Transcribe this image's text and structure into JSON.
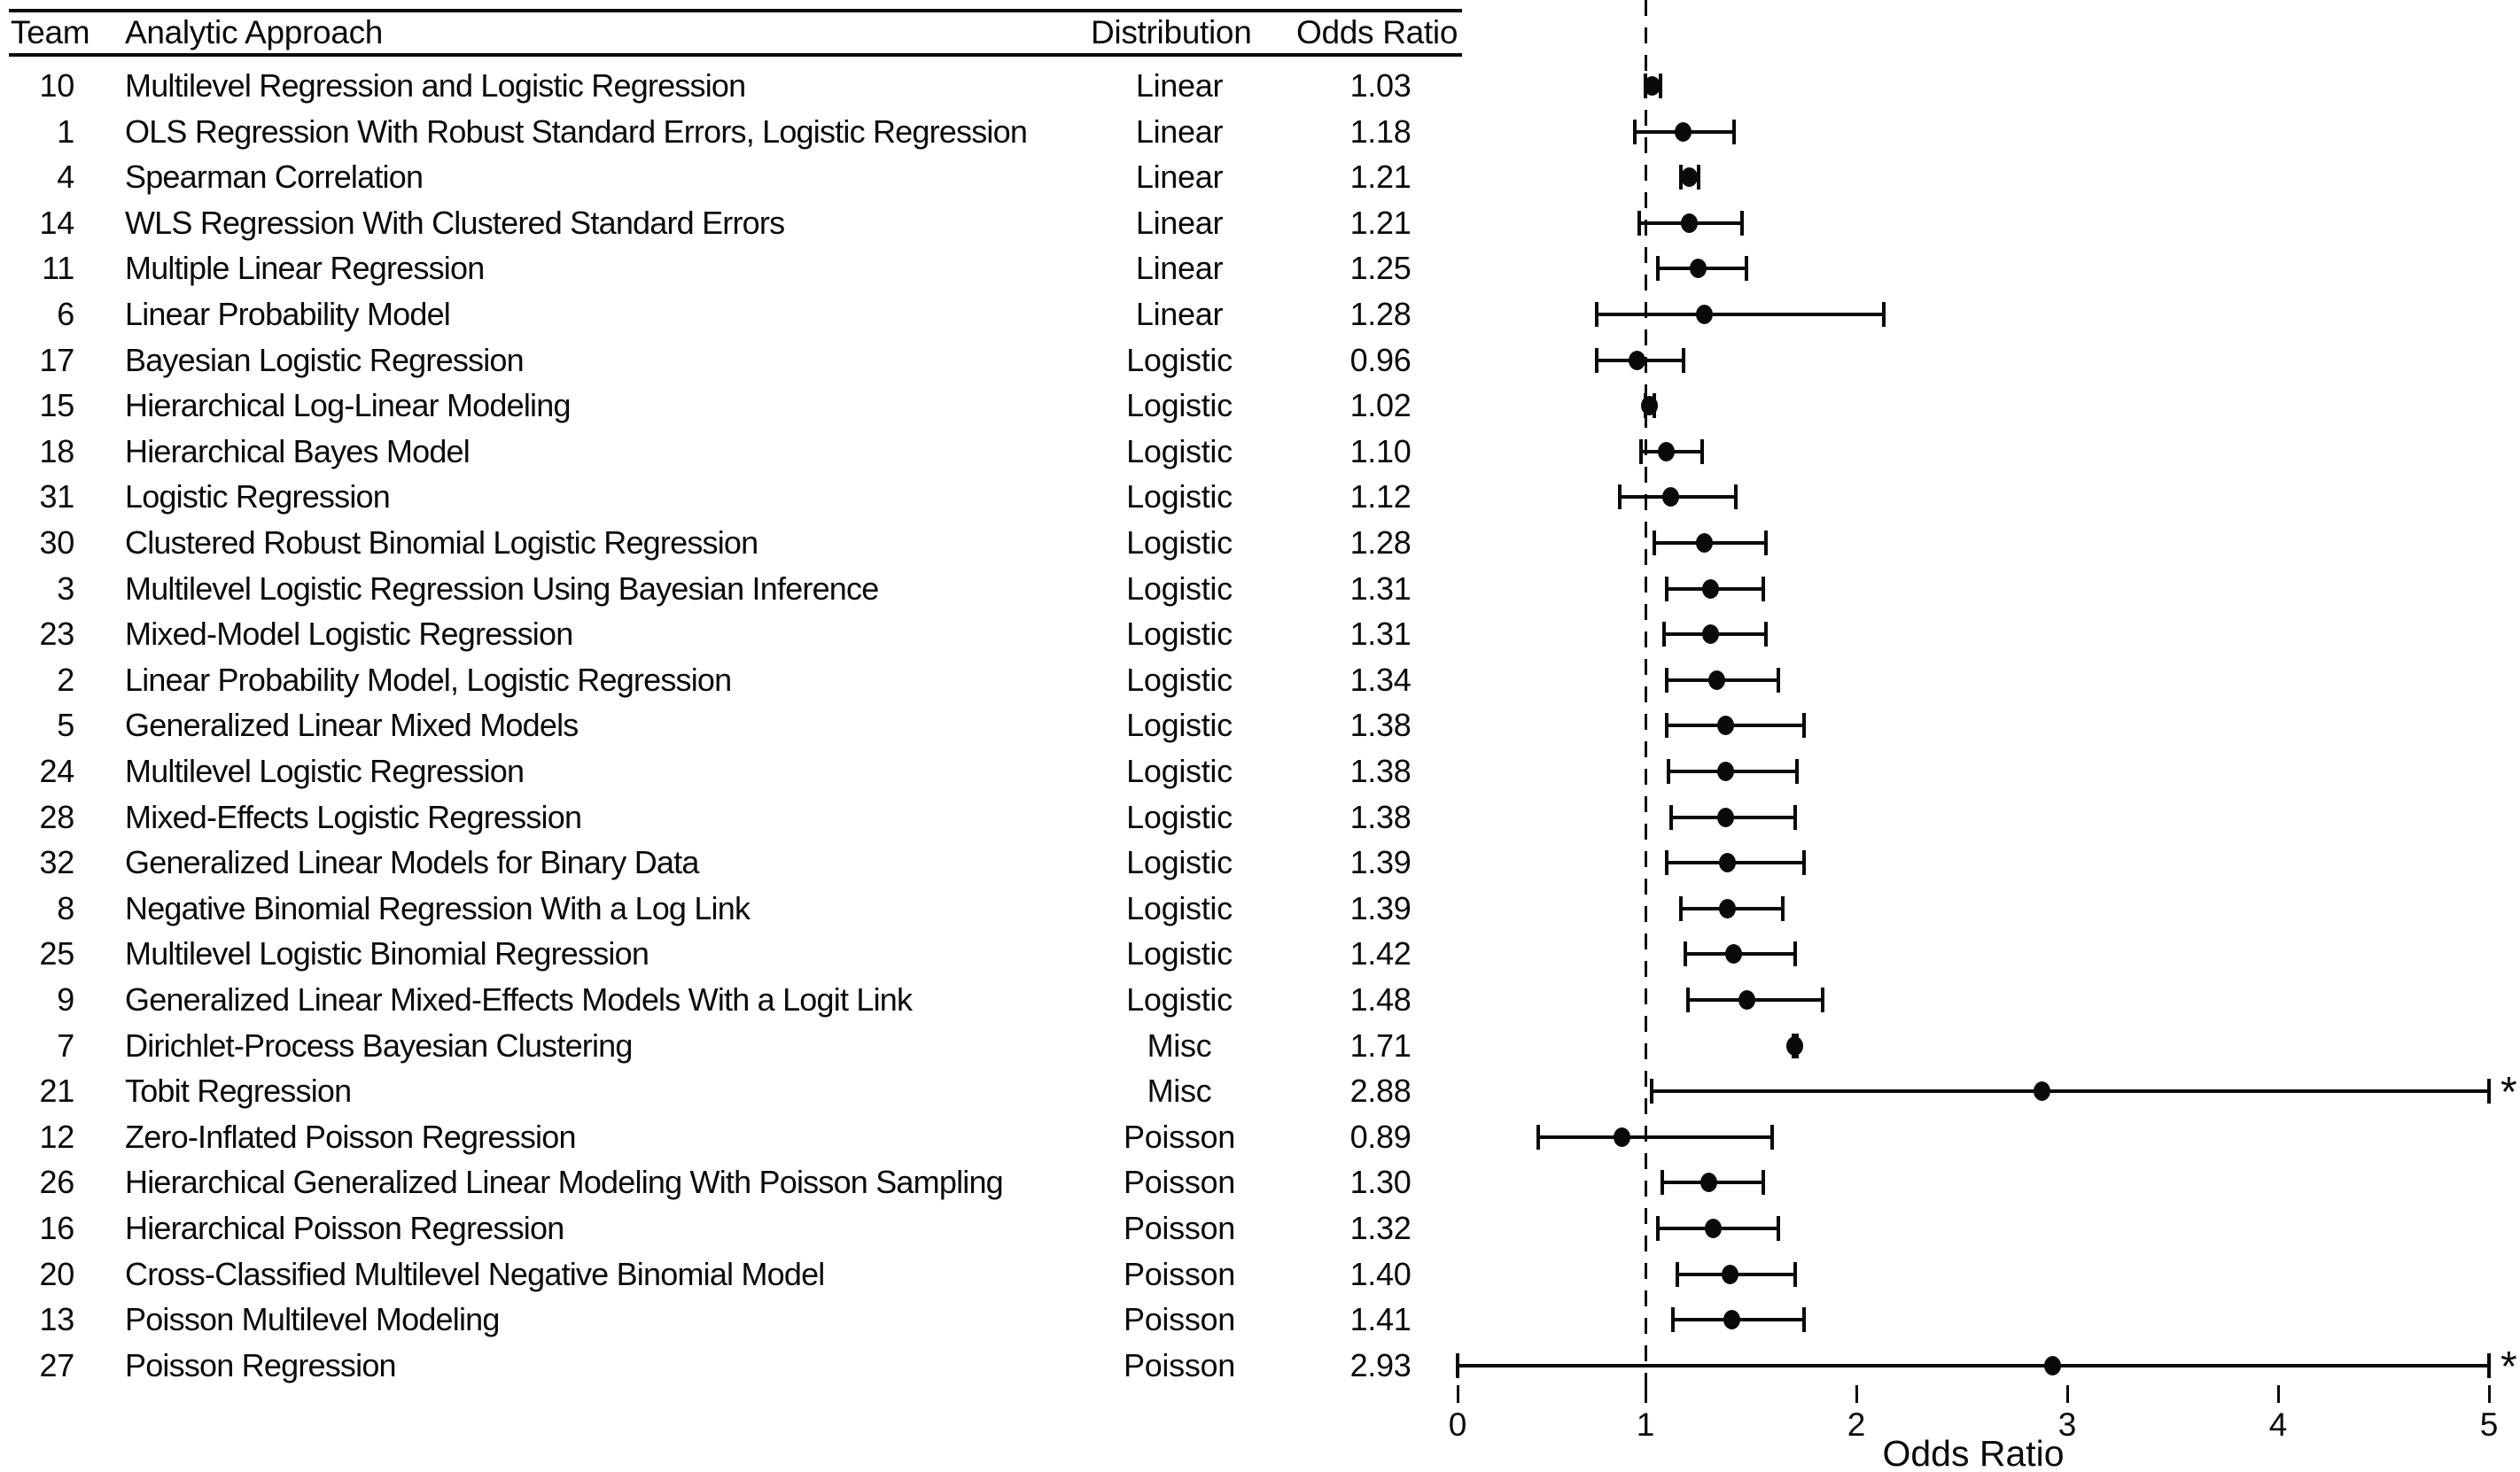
{
  "table": {
    "headers": {
      "team": "Team",
      "approach": "Analytic Approach",
      "distribution": "Distribution",
      "odds_ratio": "Odds Ratio"
    }
  },
  "chart_data": {
    "type": "scatter",
    "subtype": "forest-plot",
    "title": "",
    "xlabel": "Odds Ratio",
    "ylabel": "",
    "xlim": [
      0,
      5
    ],
    "x_ticks": [
      0,
      1,
      2,
      3,
      4,
      5
    ],
    "reference_line_x": 1,
    "truncation_marker": "*",
    "grid": false,
    "points": [
      {
        "team": "10",
        "approach": "Multilevel Regression and Logistic Regression",
        "distribution": "Linear",
        "or_text": "1.03",
        "or": 1.03,
        "ci_low": 1.0,
        "ci_high": 1.07,
        "truncated": false
      },
      {
        "team": "1",
        "approach": "OLS Regression With Robust Standard Errors, Logistic Regression",
        "distribution": "Linear",
        "or_text": "1.18",
        "or": 1.18,
        "ci_low": 0.95,
        "ci_high": 1.42,
        "truncated": false
      },
      {
        "team": "4",
        "approach": "Spearman Correlation",
        "distribution": "Linear",
        "or_text": "1.21",
        "or": 1.21,
        "ci_low": 1.17,
        "ci_high": 1.25,
        "truncated": false
      },
      {
        "team": "14",
        "approach": "WLS Regression With Clustered Standard Errors",
        "distribution": "Linear",
        "or_text": "1.21",
        "or": 1.21,
        "ci_low": 0.97,
        "ci_high": 1.46,
        "truncated": false
      },
      {
        "team": "11",
        "approach": "Multiple Linear Regression",
        "distribution": "Linear",
        "or_text": "1.25",
        "or": 1.25,
        "ci_low": 1.06,
        "ci_high": 1.48,
        "truncated": false
      },
      {
        "team": "6",
        "approach": "Linear Probability Model",
        "distribution": "Linear",
        "or_text": "1.28",
        "or": 1.28,
        "ci_low": 0.77,
        "ci_high": 2.13,
        "truncated": false
      },
      {
        "team": "17",
        "approach": "Bayesian Logistic Regression",
        "distribution": "Logistic",
        "or_text": "0.96",
        "or": 0.96,
        "ci_low": 0.77,
        "ci_high": 1.18,
        "truncated": false
      },
      {
        "team": "15",
        "approach": "Hierarchical Log-Linear Modeling",
        "distribution": "Logistic",
        "or_text": "1.02",
        "or": 1.02,
        "ci_low": 1.0,
        "ci_high": 1.04,
        "truncated": false
      },
      {
        "team": "18",
        "approach": "Hierarchical Bayes Model",
        "distribution": "Logistic",
        "or_text": "1.10",
        "or": 1.1,
        "ci_low": 0.98,
        "ci_high": 1.27,
        "truncated": false
      },
      {
        "team": "31",
        "approach": "Logistic Regression",
        "distribution": "Logistic",
        "or_text": "1.12",
        "or": 1.12,
        "ci_low": 0.88,
        "ci_high": 1.43,
        "truncated": false
      },
      {
        "team": "30",
        "approach": "Clustered Robust Binomial Logistic Regression",
        "distribution": "Logistic",
        "or_text": "1.28",
        "or": 1.28,
        "ci_low": 1.04,
        "ci_high": 1.57,
        "truncated": false
      },
      {
        "team": "3",
        "approach": "Multilevel Logistic Regression Using Bayesian Inference",
        "distribution": "Logistic",
        "or_text": "1.31",
        "or": 1.31,
        "ci_low": 1.1,
        "ci_high": 1.56,
        "truncated": false
      },
      {
        "team": "23",
        "approach": "Mixed-Model Logistic Regression",
        "distribution": "Logistic",
        "or_text": "1.31",
        "or": 1.31,
        "ci_low": 1.09,
        "ci_high": 1.57,
        "truncated": false
      },
      {
        "team": "2",
        "approach": "Linear Probability Model, Logistic Regression",
        "distribution": "Logistic",
        "or_text": "1.34",
        "or": 1.34,
        "ci_low": 1.1,
        "ci_high": 1.63,
        "truncated": false
      },
      {
        "team": "5",
        "approach": "Generalized Linear Mixed Models",
        "distribution": "Logistic",
        "or_text": "1.38",
        "or": 1.38,
        "ci_low": 1.1,
        "ci_high": 1.75,
        "truncated": false
      },
      {
        "team": "24",
        "approach": "Multilevel Logistic Regression",
        "distribution": "Logistic",
        "or_text": "1.38",
        "or": 1.38,
        "ci_low": 1.11,
        "ci_high": 1.72,
        "truncated": false
      },
      {
        "team": "28",
        "approach": "Mixed-Effects Logistic Regression",
        "distribution": "Logistic",
        "or_text": "1.38",
        "or": 1.38,
        "ci_low": 1.12,
        "ci_high": 1.71,
        "truncated": false
      },
      {
        "team": "32",
        "approach": "Generalized Linear Models for Binary Data",
        "distribution": "Logistic",
        "or_text": "1.39",
        "or": 1.39,
        "ci_low": 1.1,
        "ci_high": 1.75,
        "truncated": false
      },
      {
        "team": "8",
        "approach": "Negative Binomial Regression With a Log Link",
        "distribution": "Logistic",
        "or_text": "1.39",
        "or": 1.39,
        "ci_low": 1.17,
        "ci_high": 1.65,
        "truncated": false
      },
      {
        "team": "25",
        "approach": "Multilevel Logistic Binomial Regression",
        "distribution": "Logistic",
        "or_text": "1.42",
        "or": 1.42,
        "ci_low": 1.19,
        "ci_high": 1.71,
        "truncated": false
      },
      {
        "team": "9",
        "approach": "Generalized Linear Mixed-Effects Models With a Logit Link",
        "distribution": "Logistic",
        "or_text": "1.48",
        "or": 1.48,
        "ci_low": 1.2,
        "ci_high": 1.84,
        "truncated": false
      },
      {
        "team": "7",
        "approach": "Dirichlet-Process Bayesian Clustering",
        "distribution": "Misc",
        "or_text": "1.71",
        "or": 1.71,
        "ci_low": 1.7,
        "ci_high": 1.72,
        "truncated": false
      },
      {
        "team": "21",
        "approach": "Tobit Regression",
        "distribution": "Misc",
        "or_text": "2.88",
        "or": 2.88,
        "ci_low": 1.03,
        "ci_high": 5.0,
        "truncated": true
      },
      {
        "team": "12",
        "approach": "Zero-Inflated Poisson Regression",
        "distribution": "Poisson",
        "or_text": "0.89",
        "or": 0.89,
        "ci_low": 0.49,
        "ci_high": 1.6,
        "truncated": false
      },
      {
        "team": "26",
        "approach": "Hierarchical Generalized Linear Modeling With Poisson Sampling",
        "distribution": "Poisson",
        "or_text": "1.30",
        "or": 1.3,
        "ci_low": 1.08,
        "ci_high": 1.56,
        "truncated": false
      },
      {
        "team": "16",
        "approach": "Hierarchical Poisson Regression",
        "distribution": "Poisson",
        "or_text": "1.32",
        "or": 1.32,
        "ci_low": 1.06,
        "ci_high": 1.63,
        "truncated": false
      },
      {
        "team": "20",
        "approach": "Cross-Classified Multilevel Negative Binomial Model",
        "distribution": "Poisson",
        "or_text": "1.40",
        "or": 1.4,
        "ci_low": 1.15,
        "ci_high": 1.71,
        "truncated": false
      },
      {
        "team": "13",
        "approach": "Poisson Multilevel Modeling",
        "distribution": "Poisson",
        "or_text": "1.41",
        "or": 1.41,
        "ci_low": 1.13,
        "ci_high": 1.75,
        "truncated": false
      },
      {
        "team": "27",
        "approach": "Poisson Regression",
        "distribution": "Poisson",
        "or_text": "2.93",
        "or": 2.93,
        "ci_low": 0.11,
        "ci_high": 5.0,
        "truncated": true
      }
    ]
  }
}
